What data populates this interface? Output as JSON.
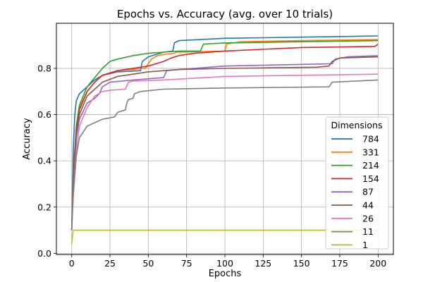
{
  "chart_data": {
    "type": "line",
    "title": "Epochs vs. Accuracy (avg. over 10 trials)",
    "xlabel": "Epochs",
    "ylabel": "Accuracy",
    "xlim": [
      -10,
      210
    ],
    "ylim": [
      -0.005,
      0.995
    ],
    "xticks": [
      0,
      25,
      50,
      75,
      100,
      125,
      150,
      175,
      200
    ],
    "yticks": [
      0.0,
      0.2,
      0.4,
      0.6,
      0.8
    ],
    "ytick_labels": [
      "0.0",
      "0.2",
      "0.4",
      "0.6",
      "0.8"
    ],
    "grid": true,
    "legend_title": "Dimensions",
    "legend_position": "lower-right",
    "series": [
      {
        "name": "784",
        "color": "#1f77b4",
        "points": [
          [
            0,
            0.1
          ],
          [
            1,
            0.45
          ],
          [
            2,
            0.6
          ],
          [
            3,
            0.66
          ],
          [
            5,
            0.69
          ],
          [
            10,
            0.72
          ],
          [
            15,
            0.75
          ],
          [
            20,
            0.77
          ],
          [
            30,
            0.785
          ],
          [
            45,
            0.79
          ],
          [
            46,
            0.83
          ],
          [
            50,
            0.85
          ],
          [
            60,
            0.87
          ],
          [
            66,
            0.875
          ],
          [
            67,
            0.91
          ],
          [
            70,
            0.92
          ],
          [
            100,
            0.93
          ],
          [
            150,
            0.935
          ],
          [
            200,
            0.94
          ]
        ]
      },
      {
        "name": "331",
        "color": "#ff7f0e",
        "points": [
          [
            0,
            0.1
          ],
          [
            1,
            0.35
          ],
          [
            3,
            0.55
          ],
          [
            5,
            0.63
          ],
          [
            10,
            0.7
          ],
          [
            15,
            0.74
          ],
          [
            20,
            0.77
          ],
          [
            30,
            0.79
          ],
          [
            48,
            0.8
          ],
          [
            50,
            0.82
          ],
          [
            52,
            0.84
          ],
          [
            56,
            0.855
          ],
          [
            60,
            0.86
          ],
          [
            67,
            0.865
          ],
          [
            68,
            0.87
          ],
          [
            100,
            0.875
          ],
          [
            101,
            0.905
          ],
          [
            110,
            0.915
          ],
          [
            150,
            0.92
          ],
          [
            200,
            0.925
          ]
        ]
      },
      {
        "name": "214",
        "color": "#2ca02c",
        "points": [
          [
            0,
            0.1
          ],
          [
            1,
            0.33
          ],
          [
            3,
            0.55
          ],
          [
            5,
            0.64
          ],
          [
            10,
            0.72
          ],
          [
            15,
            0.76
          ],
          [
            20,
            0.8
          ],
          [
            25,
            0.83
          ],
          [
            30,
            0.84
          ],
          [
            40,
            0.855
          ],
          [
            50,
            0.865
          ],
          [
            60,
            0.87
          ],
          [
            70,
            0.875
          ],
          [
            84,
            0.875
          ],
          [
            86,
            0.905
          ],
          [
            100,
            0.91
          ],
          [
            150,
            0.915
          ],
          [
            200,
            0.92
          ]
        ]
      },
      {
        "name": "154",
        "color": "#d62728",
        "points": [
          [
            0,
            0.1
          ],
          [
            1,
            0.3
          ],
          [
            3,
            0.52
          ],
          [
            5,
            0.62
          ],
          [
            10,
            0.7
          ],
          [
            15,
            0.74
          ],
          [
            20,
            0.77
          ],
          [
            30,
            0.79
          ],
          [
            50,
            0.81
          ],
          [
            60,
            0.83
          ],
          [
            65,
            0.845
          ],
          [
            70,
            0.855
          ],
          [
            80,
            0.865
          ],
          [
            100,
            0.875
          ],
          [
            150,
            0.89
          ],
          [
            198,
            0.895
          ],
          [
            200,
            0.905
          ]
        ]
      },
      {
        "name": "87",
        "color": "#9467bd",
        "points": [
          [
            0,
            0.1
          ],
          [
            1,
            0.3
          ],
          [
            3,
            0.5
          ],
          [
            5,
            0.58
          ],
          [
            10,
            0.65
          ],
          [
            15,
            0.67
          ],
          [
            18,
            0.69
          ],
          [
            20,
            0.72
          ],
          [
            25,
            0.74
          ],
          [
            40,
            0.75
          ],
          [
            60,
            0.76
          ],
          [
            62,
            0.79
          ],
          [
            70,
            0.795
          ],
          [
            100,
            0.81
          ],
          [
            170,
            0.82
          ],
          [
            172,
            0.84
          ],
          [
            180,
            0.85
          ],
          [
            200,
            0.855
          ]
        ]
      },
      {
        "name": "44",
        "color": "#8c564b",
        "points": [
          [
            0,
            0.1
          ],
          [
            1,
            0.32
          ],
          [
            3,
            0.52
          ],
          [
            5,
            0.6
          ],
          [
            10,
            0.68
          ],
          [
            20,
            0.74
          ],
          [
            30,
            0.765
          ],
          [
            50,
            0.785
          ],
          [
            70,
            0.795
          ],
          [
            100,
            0.8
          ],
          [
            160,
            0.805
          ],
          [
            168,
            0.81
          ],
          [
            170,
            0.83
          ],
          [
            175,
            0.845
          ],
          [
            200,
            0.85
          ]
        ]
      },
      {
        "name": "26",
        "color": "#e377c2",
        "points": [
          [
            0,
            0.1
          ],
          [
            1,
            0.25
          ],
          [
            3,
            0.45
          ],
          [
            5,
            0.55
          ],
          [
            10,
            0.63
          ],
          [
            15,
            0.68
          ],
          [
            20,
            0.7
          ],
          [
            25,
            0.705
          ],
          [
            35,
            0.71
          ],
          [
            37,
            0.74
          ],
          [
            40,
            0.745
          ],
          [
            60,
            0.75
          ],
          [
            100,
            0.765
          ],
          [
            150,
            0.77
          ],
          [
            200,
            0.775
          ]
        ]
      },
      {
        "name": "11",
        "color": "#7f7f7f",
        "points": [
          [
            0,
            0.1
          ],
          [
            1,
            0.25
          ],
          [
            3,
            0.42
          ],
          [
            5,
            0.5
          ],
          [
            10,
            0.55
          ],
          [
            20,
            0.58
          ],
          [
            28,
            0.59
          ],
          [
            30,
            0.61
          ],
          [
            35,
            0.62
          ],
          [
            36,
            0.65
          ],
          [
            37,
            0.665
          ],
          [
            40,
            0.67
          ],
          [
            41,
            0.69
          ],
          [
            45,
            0.7
          ],
          [
            60,
            0.71
          ],
          [
            100,
            0.715
          ],
          [
            168,
            0.72
          ],
          [
            170,
            0.74
          ],
          [
            200,
            0.75
          ]
        ]
      },
      {
        "name": "1",
        "color": "#bcbd22",
        "points": [
          [
            0,
            0.04
          ],
          [
            1,
            0.1
          ],
          [
            200,
            0.1
          ]
        ]
      }
    ]
  }
}
